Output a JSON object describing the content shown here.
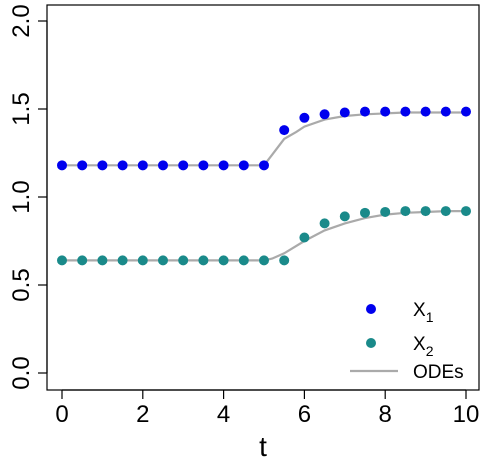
{
  "chart_data": {
    "type": "scatter",
    "xlabel": "t",
    "ylabel": "",
    "xlim": [
      0,
      10
    ],
    "ylim": [
      0,
      2
    ],
    "x_ticks": [
      "0",
      "2",
      "4",
      "6",
      "8",
      "10"
    ],
    "y_ticks": [
      "0.0",
      "0.5",
      "1.0",
      "1.5",
      "2.0"
    ],
    "legend": {
      "placement": "bottom-right"
    },
    "series": [
      {
        "name": "X",
        "name_sub": "1",
        "kind": "points",
        "color": "#0000ee",
        "x": [
          0,
          0.5,
          1,
          1.5,
          2,
          2.5,
          3,
          3.5,
          4,
          4.5,
          5,
          5.5,
          6,
          6.5,
          7,
          7.5,
          8,
          8.5,
          9,
          9.5,
          10
        ],
        "y": [
          1.18,
          1.18,
          1.18,
          1.18,
          1.18,
          1.18,
          1.18,
          1.18,
          1.18,
          1.18,
          1.18,
          1.38,
          1.45,
          1.47,
          1.48,
          1.485,
          1.485,
          1.485,
          1.485,
          1.485,
          1.485
        ]
      },
      {
        "name": "X",
        "name_sub": "2",
        "kind": "points",
        "color": "#1a8a8a",
        "x": [
          0,
          0.5,
          1,
          1.5,
          2,
          2.5,
          3,
          3.5,
          4,
          4.5,
          5,
          5.5,
          6,
          6.5,
          7,
          7.5,
          8,
          8.5,
          9,
          9.5,
          10
        ],
        "y": [
          0.64,
          0.64,
          0.64,
          0.64,
          0.64,
          0.64,
          0.64,
          0.64,
          0.64,
          0.64,
          0.64,
          0.64,
          0.77,
          0.85,
          0.89,
          0.91,
          0.915,
          0.92,
          0.92,
          0.92,
          0.92
        ]
      },
      {
        "name": "ODEs",
        "kind": "lines",
        "color": "#aaaaaa",
        "curves": [
          {
            "x": [
              0,
              5,
              5.2,
              5.5,
              5.8,
              6,
              6.5,
              7,
              7.5,
              8,
              8.5,
              9,
              9.5,
              10
            ],
            "y": [
              1.18,
              1.18,
              1.24,
              1.33,
              1.37,
              1.4,
              1.44,
              1.46,
              1.47,
              1.475,
              1.48,
              1.48,
              1.48,
              1.48
            ]
          },
          {
            "x": [
              0,
              5,
              5.2,
              5.5,
              6,
              6.5,
              7,
              7.5,
              8,
              8.5,
              9,
              9.5,
              10
            ],
            "y": [
              0.64,
              0.64,
              0.65,
              0.68,
              0.75,
              0.81,
              0.85,
              0.88,
              0.9,
              0.91,
              0.915,
              0.92,
              0.92
            ]
          }
        ]
      }
    ]
  }
}
